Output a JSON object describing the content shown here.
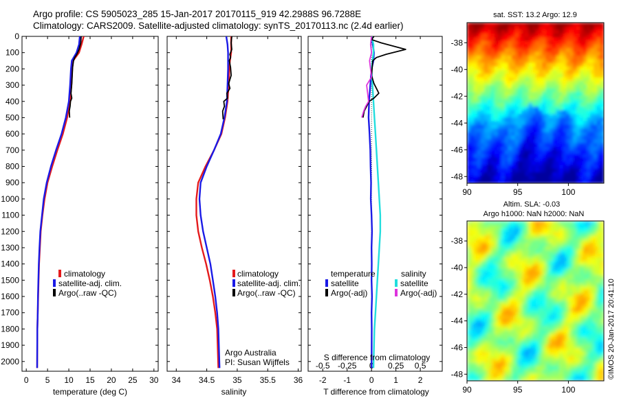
{
  "header": {
    "line1": "Argo profile: CS 5905023_285 15-Jan-2017 20170115_919 42.2988S 96.7288E",
    "line2": "Climatology: CARS2009. Satellite-adjusted climatology: synTS_20170113.nc (2.4d earlier)"
  },
  "colors": {
    "climatology": "#e41a1c",
    "satellite": "#1a1ae6",
    "argo": "#000000",
    "sal_satellite": "#22dddd",
    "sal_argo": "#dd33dd"
  },
  "legend_std": [
    {
      "label": "climatology",
      "color": "#e41a1c"
    },
    {
      "label": "satellite-adj. clim.",
      "color": "#1a1ae6"
    },
    {
      "label": "Argo(..raw -QC)",
      "color": "#000000"
    }
  ],
  "diff_legend": {
    "temp_title": "temperature",
    "sal_title": "salinity",
    "temp_items": [
      {
        "label": "satellite",
        "color": "#1a1ae6"
      },
      {
        "label": "Argo(-adj)",
        "color": "#000000"
      }
    ],
    "sal_items": [
      {
        "label": "satellite",
        "color": "#22dddd"
      },
      {
        "label": "Argo(-adj)",
        "color": "#dd33dd"
      }
    ]
  },
  "credit": {
    "line1": "Argo Australia",
    "line2": "PI: Susan Wijffels"
  },
  "map_top_title": "sat. SST: 13.2 Argo: 12.9",
  "map_bottom_title1": "Altim. SLA: -0.03",
  "map_bottom_title2": "Argo h1000: NaN h2000: NaN",
  "stamp": "©IMOS 20-Jan-2017 20:41:10",
  "chart_data": [
    {
      "type": "line",
      "xlabel": "temperature (deg C)",
      "ylabel": "",
      "xlim": [
        -1,
        31
      ],
      "ylim": [
        2060,
        0
      ],
      "xticks": [
        0,
        5,
        10,
        15,
        20,
        25,
        30
      ],
      "yticks": [
        0,
        100,
        200,
        300,
        400,
        500,
        600,
        700,
        800,
        900,
        1000,
        1100,
        1200,
        1300,
        1400,
        1500,
        1600,
        1700,
        1800,
        1900,
        2000
      ],
      "series": [
        {
          "name": "climatology",
          "color": "#e41a1c",
          "x": [
            13.5,
            13.0,
            12.4,
            11.0,
            10.8,
            10.6,
            10.3,
            9.6,
            8.6,
            7.3,
            6.1,
            5.0,
            4.3,
            3.8,
            3.4,
            3.2,
            3.0,
            2.9,
            2.8,
            2.7,
            2.6,
            2.55
          ],
          "y": [
            0,
            50,
            100,
            150,
            200,
            300,
            400,
            500,
            600,
            700,
            800,
            900,
            1000,
            1100,
            1200,
            1300,
            1400,
            1500,
            1600,
            1700,
            1800,
            2040
          ]
        },
        {
          "name": "satellite-adj. clim.",
          "color": "#1a1ae6",
          "x": [
            12.6,
            12.4,
            11.8,
            10.7,
            10.5,
            10.3,
            10.0,
            9.3,
            8.3,
            7.0,
            5.8,
            4.8,
            4.1,
            3.7,
            3.3,
            3.1,
            2.95,
            2.85,
            2.75,
            2.7,
            2.6,
            2.55
          ],
          "y": [
            0,
            50,
            100,
            150,
            200,
            300,
            400,
            500,
            600,
            700,
            800,
            900,
            1000,
            1100,
            1200,
            1300,
            1400,
            1500,
            1600,
            1700,
            1800,
            2040
          ]
        },
        {
          "name": "Argo(..raw -QC)",
          "color": "#000000",
          "x": [
            12.9,
            12.8,
            12.4,
            11.9,
            11.4,
            11.1,
            10.9,
            10.8,
            10.7,
            10.6,
            10.5,
            10.7,
            10.4,
            10.3,
            10.1,
            10.2
          ],
          "y": [
            0,
            40,
            80,
            110,
            130,
            150,
            190,
            240,
            290,
            320,
            350,
            380,
            400,
            430,
            460,
            500
          ]
        }
      ]
    },
    {
      "type": "line",
      "xlabel": "salinity",
      "ylabel": "",
      "xlim": [
        33.85,
        36.05
      ],
      "ylim": [
        2060,
        0
      ],
      "xticks": [
        34,
        34.5,
        35,
        35.5,
        36
      ],
      "yticks": [
        0,
        100,
        200,
        300,
        400,
        500,
        600,
        700,
        800,
        900,
        1000,
        1100,
        1200,
        1300,
        1400,
        1500,
        1600,
        1700,
        1800,
        1900,
        2000
      ],
      "series": [
        {
          "name": "climatology",
          "color": "#e41a1c",
          "x": [
            34.9,
            34.9,
            34.9,
            34.88,
            34.87,
            34.86,
            34.84,
            34.8,
            34.74,
            34.62,
            34.48,
            34.36,
            34.33,
            34.33,
            34.36,
            34.42,
            34.49,
            34.55,
            34.6,
            34.64,
            34.67,
            34.69
          ],
          "y": [
            0,
            50,
            100,
            150,
            200,
            300,
            400,
            500,
            600,
            700,
            800,
            900,
            1000,
            1100,
            1200,
            1300,
            1400,
            1500,
            1600,
            1700,
            1800,
            2040
          ]
        },
        {
          "name": "satellite-adj. clim.",
          "color": "#1a1ae6",
          "x": [
            34.82,
            34.84,
            34.85,
            34.85,
            34.85,
            34.84,
            34.83,
            34.79,
            34.73,
            34.62,
            34.5,
            34.4,
            34.38,
            34.4,
            34.44,
            34.5,
            34.56,
            34.6,
            34.64,
            34.67,
            34.69,
            34.71
          ],
          "y": [
            0,
            50,
            100,
            150,
            200,
            300,
            400,
            500,
            600,
            700,
            800,
            900,
            1000,
            1100,
            1200,
            1300,
            1400,
            1500,
            1600,
            1700,
            1800,
            2040
          ]
        },
        {
          "name": "Argo(..raw -QC)",
          "color": "#000000",
          "x": [
            34.91,
            34.9,
            34.91,
            34.88,
            34.89,
            34.87,
            34.89,
            34.9,
            34.86,
            34.88,
            34.83,
            34.84,
            34.78,
            34.79,
            34.76,
            34.77
          ],
          "y": [
            0,
            40,
            80,
            110,
            130,
            150,
            190,
            240,
            290,
            320,
            350,
            380,
            400,
            430,
            460,
            510
          ]
        }
      ]
    },
    {
      "type": "line",
      "xlabel": "T difference from climatology",
      "x2label": "S difference from climatology",
      "ylabel": "",
      "xlim": [
        -2.6,
        2.9
      ],
      "x2lim": [
        -0.65,
        0.725
      ],
      "ylim": [
        2060,
        0
      ],
      "xticks": [
        -2,
        -1,
        0,
        1,
        2
      ],
      "x2ticks": [
        -0.5,
        -0.25,
        0,
        0.25,
        0.5
      ],
      "x2ticklabels": [
        "-0.5",
        "-0.25",
        "0",
        "0.25",
        "0.5"
      ],
      "series": [
        {
          "name": "temperature satellite",
          "color": "#1a1ae6",
          "x": [
            0.0,
            0.05,
            0.1,
            0.08,
            0.0,
            -0.05,
            -0.1,
            -0.12,
            -0.08,
            -0.05,
            -0.04,
            -0.02,
            -0.03,
            0.0,
            0.02,
            0.0,
            0.01,
            0.0,
            0.02,
            0.0,
            0.01,
            0.0
          ],
          "y": [
            0,
            50,
            100,
            150,
            200,
            300,
            400,
            500,
            600,
            700,
            800,
            900,
            1000,
            1100,
            1200,
            1300,
            1400,
            1500,
            1600,
            1700,
            1800,
            2040
          ]
        },
        {
          "name": "salinity satellite",
          "color": "#22dddd",
          "x": [
            0.0,
            0.02,
            0.02,
            0.01,
            0.0,
            0.01,
            0.02,
            0.03,
            0.04,
            0.05,
            0.06,
            0.07,
            0.08,
            0.09,
            0.09,
            0.08,
            0.07,
            0.06,
            0.05,
            0.04,
            0.03,
            0.02
          ],
          "y": [
            0,
            50,
            100,
            150,
            200,
            300,
            400,
            500,
            600,
            700,
            800,
            900,
            1000,
            1100,
            1200,
            1300,
            1400,
            1500,
            1600,
            1700,
            1800,
            2040
          ]
        },
        {
          "name": "temperature Argo(-adj)",
          "color": "#000000",
          "x": [
            0.1,
            0.0,
            0.4,
            1.4,
            0.6,
            0.2,
            0.05,
            0.0,
            0.1,
            0.2,
            0.3,
            0.1,
            -0.1,
            -0.2,
            -0.3,
            -0.35
          ],
          "y": [
            0,
            20,
            40,
            80,
            110,
            130,
            150,
            240,
            290,
            320,
            350,
            380,
            400,
            430,
            460,
            500
          ]
        },
        {
          "name": "salinity Argo(-adj)",
          "color": "#dd33dd",
          "x": [
            0.0,
            -0.01,
            0.0,
            -0.02,
            0.0,
            -0.05,
            -0.04,
            -0.03,
            -0.06,
            -0.08,
            -0.1
          ],
          "y": [
            0,
            50,
            100,
            150,
            250,
            300,
            350,
            400,
            430,
            460,
            500
          ]
        }
      ]
    },
    {
      "type": "heatmap",
      "title": "sat. SST: 13.2 Argo: 12.9",
      "xlim": [
        90,
        103.5
      ],
      "ylim": [
        -48.5,
        -36.5
      ],
      "xticks": [
        90,
        95,
        100
      ],
      "yticks": [
        -38,
        -40,
        -42,
        -44,
        -46,
        -48
      ],
      "colormap": "jet",
      "pattern": "warm (red/orange) in north, cooling to dark blue in south"
    },
    {
      "type": "heatmap",
      "title": "Altim. SLA: -0.03",
      "xlim": [
        90,
        103.5
      ],
      "ylim": [
        -48.5,
        -36.5
      ],
      "xticks": [
        90,
        95,
        100
      ],
      "yticks": [
        -38,
        -40,
        -42,
        -44,
        -46,
        -48
      ],
      "colormap": "jet",
      "pattern": "mottled green/yellow with cyan patches"
    }
  ]
}
